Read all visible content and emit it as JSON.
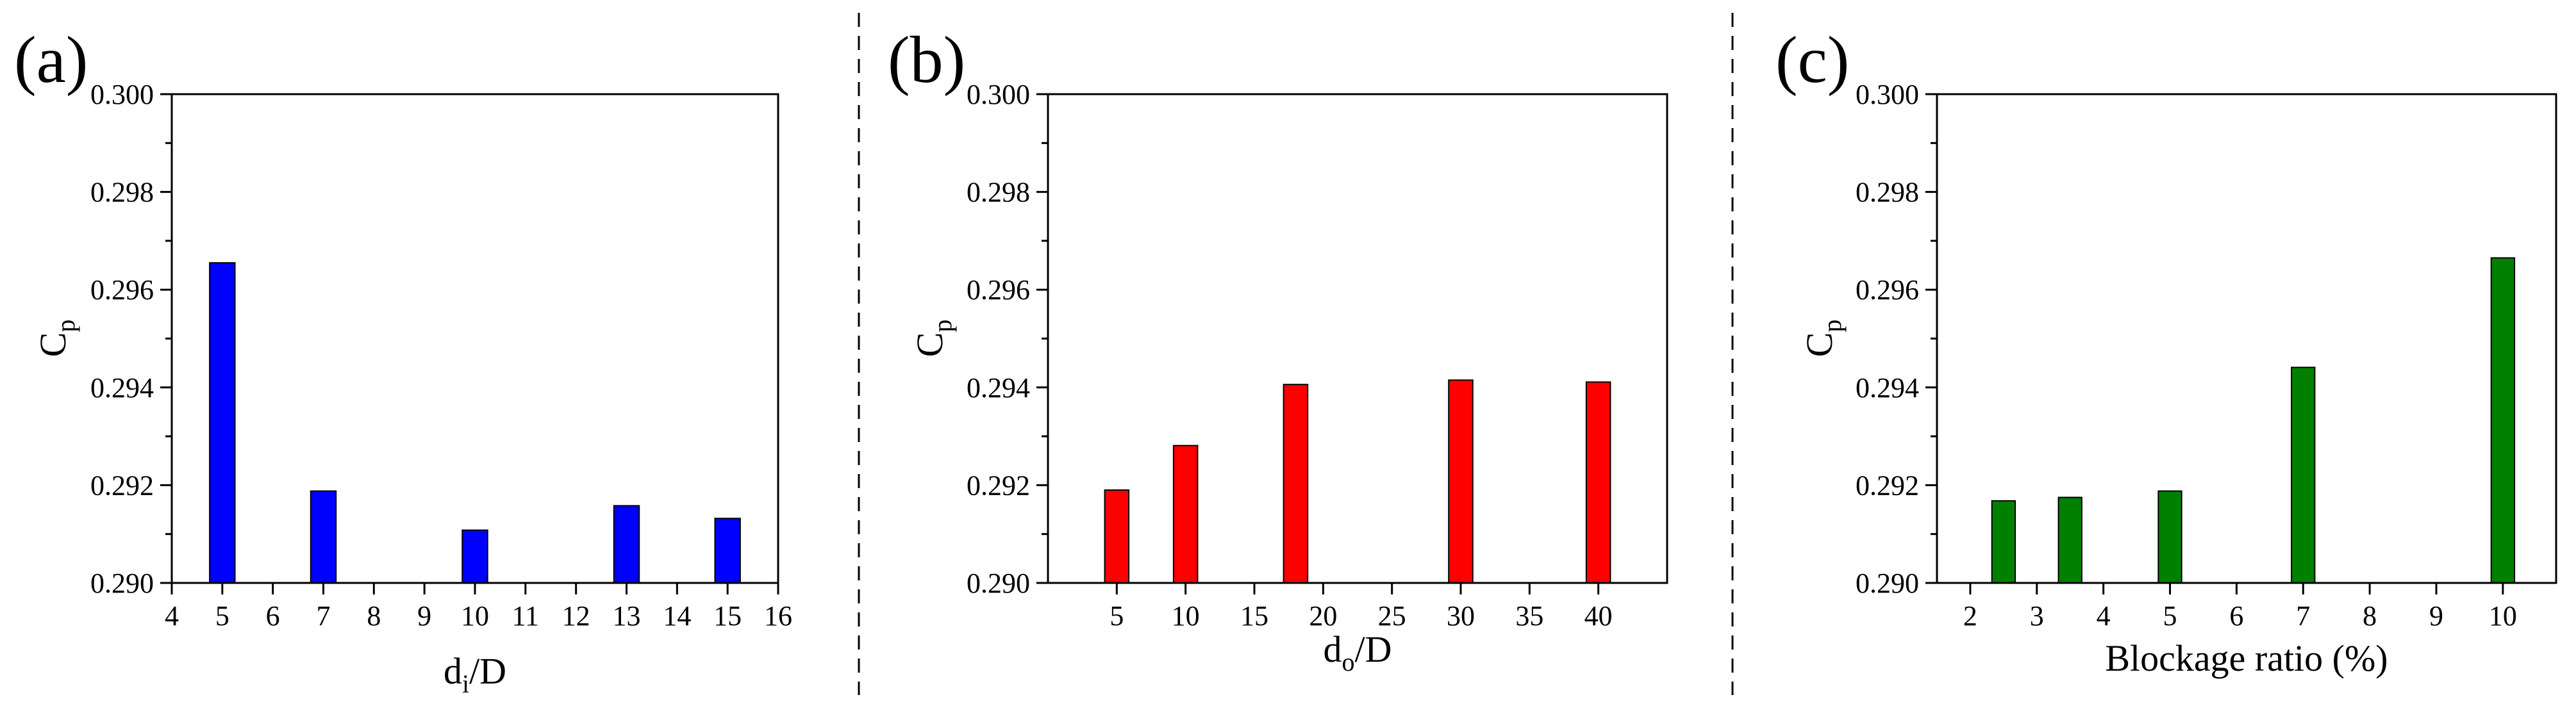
{
  "panels": [
    {
      "label": "(a)",
      "ylabel_main": "C",
      "ylabel_sub": "p",
      "xlabel_main": "d",
      "xlabel_sub": "i",
      "xlabel_tail": "/D"
    },
    {
      "label": "(b)",
      "ylabel_main": "C",
      "ylabel_sub": "p",
      "xlabel_main": "d",
      "xlabel_sub": "o",
      "xlabel_tail": "/D"
    },
    {
      "label": "(c)",
      "ylabel_main": "C",
      "ylabel_sub": "p",
      "xlabel_main": "Blockage ratio (%)",
      "xlabel_sub": "",
      "xlabel_tail": ""
    }
  ],
  "chart_data": [
    {
      "type": "bar",
      "title": "",
      "xlabel": "di/D",
      "ylabel": "Cp",
      "xlim": [
        4,
        16
      ],
      "ylim": [
        0.29,
        0.3
      ],
      "xticks": [
        4,
        5,
        6,
        7,
        8,
        9,
        10,
        11,
        12,
        13,
        14,
        15,
        16
      ],
      "yticks": [
        0.29,
        0.292,
        0.294,
        0.296,
        0.298,
        0.3
      ],
      "yminor": 0.001,
      "bar_width": 0.5,
      "color": "#0000FF",
      "x": [
        5,
        7,
        10,
        13,
        15
      ],
      "values": [
        0.29655,
        0.29188,
        0.29108,
        0.29158,
        0.29132
      ]
    },
    {
      "type": "bar",
      "title": "",
      "xlabel": "do/D",
      "ylabel": "Cp",
      "xlim": [
        0,
        45
      ],
      "ylim": [
        0.29,
        0.3
      ],
      "xticks": [
        5,
        10,
        15,
        20,
        25,
        30,
        35,
        40
      ],
      "yticks": [
        0.29,
        0.292,
        0.294,
        0.296,
        0.298,
        0.3
      ],
      "yminor": 0.001,
      "bar_width": 1.75,
      "color": "#FF0000",
      "x": [
        5,
        10,
        18,
        30,
        40
      ],
      "values": [
        0.2919,
        0.29281,
        0.29406,
        0.29415,
        0.29411
      ]
    },
    {
      "type": "bar",
      "title": "",
      "xlabel": "Blockage ratio (%)",
      "ylabel": "Cp",
      "xlim": [
        1.5,
        10.8
      ],
      "ylim": [
        0.29,
        0.3
      ],
      "xticks": [
        2,
        3,
        4,
        5,
        6,
        7,
        8,
        9,
        10
      ],
      "yticks": [
        0.29,
        0.292,
        0.294,
        0.296,
        0.298,
        0.3
      ],
      "yminor": 0.001,
      "bar_width": 0.35,
      "color": "#008000",
      "x": [
        2.5,
        3.5,
        5,
        7,
        10
      ],
      "values": [
        0.29168,
        0.29175,
        0.29188,
        0.29441,
        0.29665
      ]
    }
  ]
}
